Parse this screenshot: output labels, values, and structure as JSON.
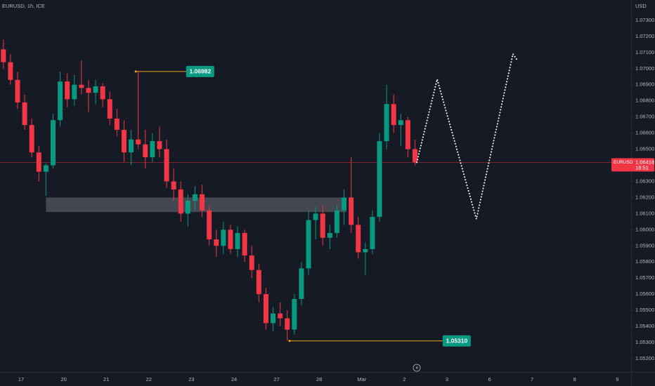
{
  "chart_data": {
    "type": "candlestick",
    "title": "EURUSD, 1h, ICE",
    "y_unit": "USD",
    "up_color": "#089981",
    "down_color": "#f23645",
    "x": [
      -10,
      -6,
      -2,
      2,
      6,
      10,
      14,
      18,
      22,
      26,
      30,
      34,
      38,
      42,
      46,
      50,
      54,
      58,
      62,
      66,
      70,
      74,
      78,
      82,
      86,
      90,
      94,
      98,
      102,
      106,
      110,
      114,
      118,
      122,
      126,
      130,
      134,
      138,
      142,
      146,
      150,
      154,
      158,
      162,
      166,
      170,
      174,
      178,
      182,
      186,
      190,
      194,
      198,
      202,
      206,
      210,
      214,
      218,
      222
    ],
    "open": [
      1.0712,
      1.0704,
      1.0693,
      1.0679,
      1.0665,
      1.0648,
      1.0636,
      1.064,
      1.0668,
      1.0692,
      1.0681,
      1.069,
      1.0688,
      1.0685,
      1.0689,
      1.0681,
      1.0669,
      1.0662,
      1.0648,
      1.0656,
      1.0653,
      1.0645,
      1.0655,
      1.065,
      1.063,
      1.0625,
      1.061,
      1.0618,
      1.0622,
      1.0612,
      1.0594,
      1.059,
      1.06,
      1.0588,
      1.0598,
      1.0584,
      1.0575,
      1.056,
      1.0542,
      1.0548,
      1.0545,
      1.0538,
      1.0557,
      1.0576,
      1.0606,
      1.061,
      1.0595,
      1.0598,
      1.0612,
      1.062,
      1.0603,
      1.0586,
      1.0588,
      1.0608,
      1.0655,
      1.0678,
      1.0665,
      1.0668,
      1.065
    ],
    "high": [
      1.0718,
      1.0709,
      1.0698,
      1.0684,
      1.0669,
      1.0652,
      1.0641,
      1.0672,
      1.0698,
      1.0697,
      1.0696,
      1.0705,
      1.0693,
      1.0693,
      1.0691,
      1.0686,
      1.0675,
      1.0668,
      1.0662,
      1.06982,
      1.0662,
      1.066,
      1.0664,
      1.0656,
      1.0638,
      1.063,
      1.0622,
      1.0627,
      1.0628,
      1.0615,
      1.06,
      1.0605,
      1.0603,
      1.0602,
      1.06,
      1.059,
      1.0579,
      1.0564,
      1.0552,
      1.0555,
      1.055,
      1.056,
      1.058,
      1.0612,
      1.0614,
      1.0615,
      1.0603,
      1.0615,
      1.0625,
      1.0645,
      1.0608,
      1.0592,
      1.0612,
      1.066,
      1.069,
      1.0684,
      1.0672,
      1.067,
      1.0656
    ],
    "low": [
      1.07,
      1.069,
      1.0675,
      1.0662,
      1.0645,
      1.063,
      1.0621,
      1.0638,
      1.0664,
      1.0676,
      1.0677,
      1.0684,
      1.0673,
      1.0678,
      1.0676,
      1.0665,
      1.0658,
      1.0642,
      1.064,
      1.065,
      1.0638,
      1.0642,
      1.0645,
      1.0626,
      1.0618,
      1.0605,
      1.0602,
      1.0612,
      1.0608,
      1.059,
      1.0583,
      1.0585,
      1.0585,
      1.0583,
      1.058,
      1.057,
      1.0555,
      1.0538,
      1.0537,
      1.054,
      1.0531,
      1.0535,
      1.0553,
      1.0572,
      1.0594,
      1.059,
      1.0588,
      1.0595,
      1.0603,
      1.0598,
      1.0582,
      1.0572,
      1.0585,
      1.0605,
      1.065,
      1.066,
      1.0652,
      1.0645,
      1.064
    ],
    "close": [
      1.0704,
      1.0693,
      1.0679,
      1.0665,
      1.0648,
      1.0636,
      1.064,
      1.0668,
      1.0692,
      1.0681,
      1.069,
      1.0688,
      1.0685,
      1.0689,
      1.0681,
      1.0669,
      1.0662,
      1.0648,
      1.0656,
      1.0653,
      1.0645,
      1.0655,
      1.065,
      1.063,
      1.0625,
      1.061,
      1.0618,
      1.0622,
      1.0612,
      1.0594,
      1.059,
      1.06,
      1.0588,
      1.0598,
      1.0584,
      1.0575,
      1.056,
      1.0542,
      1.0548,
      1.0545,
      1.0538,
      1.0557,
      1.0576,
      1.0606,
      1.061,
      1.0595,
      1.0598,
      1.0612,
      1.062,
      1.0603,
      1.0586,
      1.0588,
      1.0608,
      1.0655,
      1.0678,
      1.0665,
      1.0668,
      1.065,
      1.06418
    ],
    "xlim": [
      -11.9,
      343.8
    ],
    "xticks": [
      {
        "value": 0,
        "label": "17"
      },
      {
        "value": 24,
        "label": "20"
      },
      {
        "value": 48,
        "label": "21"
      },
      {
        "value": 72,
        "label": "22"
      },
      {
        "value": 96,
        "label": "23"
      },
      {
        "value": 120,
        "label": "24"
      },
      {
        "value": 144,
        "label": "27"
      },
      {
        "value": 168,
        "label": "28"
      },
      {
        "value": 192,
        "label": "Mar"
      },
      {
        "value": 216,
        "label": "2"
      },
      {
        "value": 240,
        "label": "3"
      },
      {
        "value": 264,
        "label": "6"
      },
      {
        "value": 288,
        "label": "7"
      },
      {
        "value": 312,
        "label": "8"
      },
      {
        "value": 336,
        "label": "9"
      }
    ],
    "ylim": [
      1.05117,
      1.07426
    ],
    "yticks": [
      {
        "value": 1.073,
        "label": "1.07300"
      },
      {
        "value": 1.072,
        "label": "1.07200"
      },
      {
        "value": 1.071,
        "label": "1.07100"
      },
      {
        "value": 1.07,
        "label": "1.07000"
      },
      {
        "value": 1.069,
        "label": "1.06900"
      },
      {
        "value": 1.068,
        "label": "1.06800"
      },
      {
        "value": 1.067,
        "label": "1.06700"
      },
      {
        "value": 1.066,
        "label": "1.06600"
      },
      {
        "value": 1.065,
        "label": "1.06500"
      },
      {
        "value": 1.063,
        "label": "1.06300"
      },
      {
        "value": 1.062,
        "label": "1.06200"
      },
      {
        "value": 1.061,
        "label": "1.06100"
      },
      {
        "value": 1.06,
        "label": "1.06000"
      },
      {
        "value": 1.059,
        "label": "1.05900"
      },
      {
        "value": 1.058,
        "label": "1.05800"
      },
      {
        "value": 1.057,
        "label": "1.05700"
      },
      {
        "value": 1.056,
        "label": "1.05600"
      },
      {
        "value": 1.055,
        "label": "1.05500"
      },
      {
        "value": 1.054,
        "label": "1.05400"
      },
      {
        "value": 1.053,
        "label": "1.05300"
      },
      {
        "value": 1.052,
        "label": "1.05200"
      }
    ],
    "annotations": [
      {
        "value": 1.06982,
        "label": "1.06982",
        "x": [
          64.6,
          93
        ]
      },
      {
        "value": 1.0531,
        "label": "1.05310",
        "x": [
          151.3,
          237.6
        ]
      }
    ],
    "zone": {
      "low": 1.0611,
      "high": 1.062,
      "x": [
        14,
        183.3
      ]
    },
    "projection": {
      "x": [
        223,
        234.5,
        256.6,
        277.2,
        280
      ],
      "y": [
        1.06418,
        1.06934,
        1.06067,
        1.07091,
        1.07047
      ]
    },
    "last_price": {
      "symbol": "EURUSD",
      "value": 1.06418,
      "label": "1.06418",
      "time": "18:51",
      "color": "#f23645"
    }
  }
}
